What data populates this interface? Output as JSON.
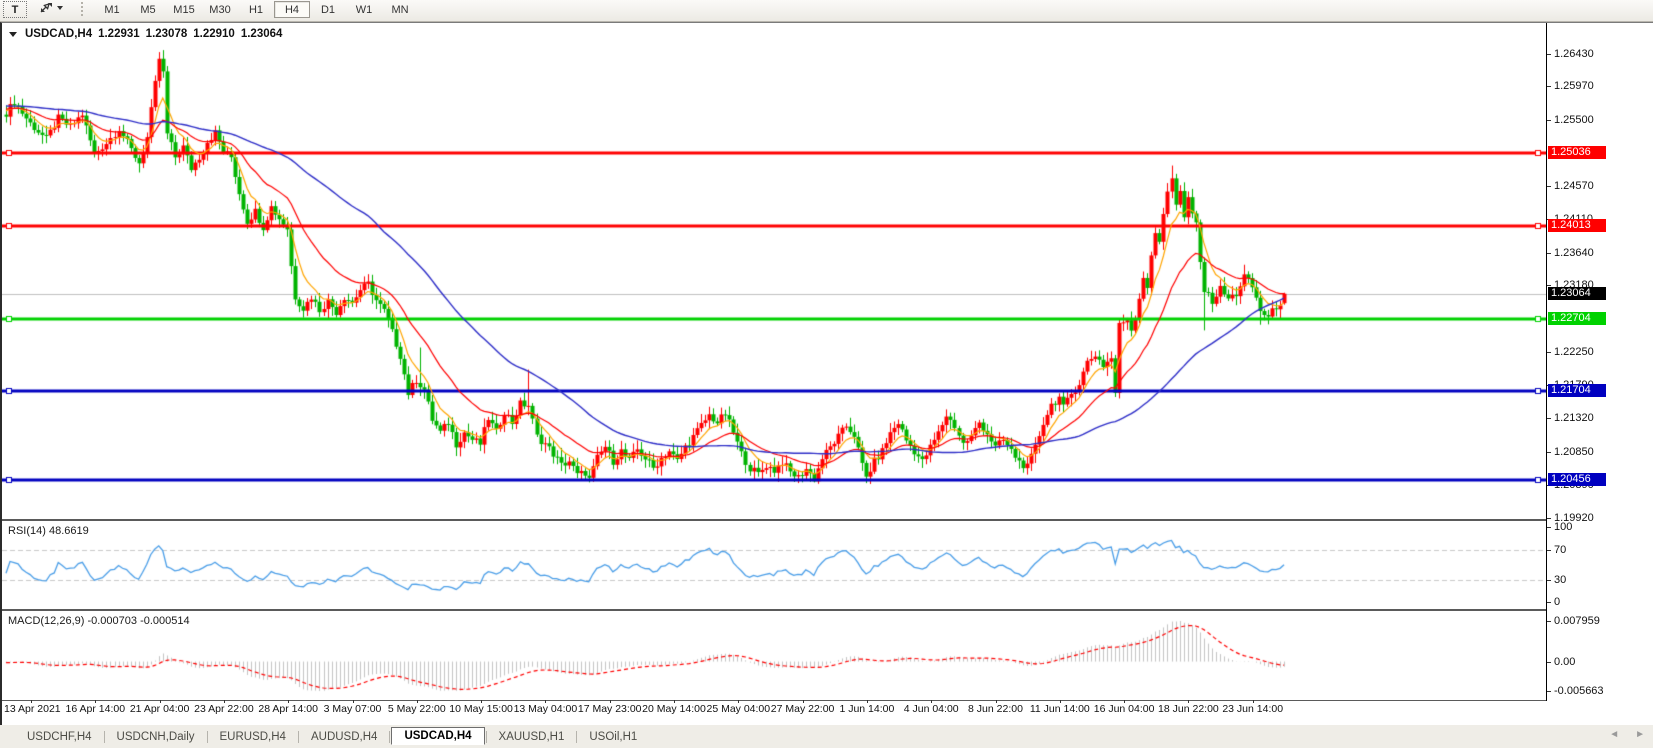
{
  "toolbar": {
    "text_tool_label": "T",
    "periods": [
      "M1",
      "M5",
      "M15",
      "M30",
      "H1",
      "H4",
      "D1",
      "W1",
      "MN"
    ],
    "active_period": "H4"
  },
  "chart_data": {
    "type": "candlestick",
    "symbol": "USDCAD",
    "timeframe": "H4",
    "header": {
      "symbol_display": "USDCAD,H4",
      "open": "1.22931",
      "high": "1.23078",
      "low": "1.22910",
      "close": "1.23064"
    },
    "current_price": {
      "label": "1.23064",
      "value": 1.23064
    },
    "hlines": [
      {
        "label": "1.25036",
        "value": 1.25036,
        "color": "#ff0000"
      },
      {
        "label": "1.24013",
        "value": 1.24013,
        "color": "#ff0000"
      },
      {
        "label": "1.22704",
        "value": 1.22704,
        "color": "#00d200"
      },
      {
        "label": "1.21704",
        "value": 1.21704,
        "color": "#0000c0"
      },
      {
        "label": "1.20456",
        "value": 1.20456,
        "color": "#0000c0"
      }
    ],
    "price_ticks": [
      {
        "label": "1.26430",
        "value": 1.2643
      },
      {
        "label": "1.25970",
        "value": 1.2597
      },
      {
        "label": "1.25500",
        "value": 1.255
      },
      {
        "label": "1.24570",
        "value": 1.2457
      },
      {
        "label": "1.24110",
        "value": 1.2411
      },
      {
        "label": "1.23640",
        "value": 1.2364
      },
      {
        "label": "1.23180",
        "value": 1.2318
      },
      {
        "label": "1.22250",
        "value": 1.2225
      },
      {
        "label": "1.21790",
        "value": 1.2179
      },
      {
        "label": "1.21320",
        "value": 1.2132
      },
      {
        "label": "1.20850",
        "value": 1.2085
      },
      {
        "label": "1.20390",
        "value": 1.2039
      },
      {
        "label": "1.19920",
        "value": 1.1992
      }
    ],
    "time_labels": [
      "13 Apr 2021",
      "16 Apr 14:00",
      "21 Apr 04:00",
      "23 Apr 22:00",
      "28 Apr 14:00",
      "3 May 07:00",
      "5 May 22:00",
      "10 May 15:00",
      "13 May 04:00",
      "17 May 23:00",
      "20 May 14:00",
      "25 May 04:00",
      "27 May 22:00",
      "1 Jun 14:00",
      "4 Jun 04:00",
      "8 Jun 22:00",
      "11 Jun 14:00",
      "16 Jun 04:00",
      "18 Jun 22:00",
      "23 Jun 14:00"
    ],
    "series_keypoints": [
      [
        -64,
        1.26
      ],
      [
        -48,
        1.256
      ],
      [
        -32,
        1.2588
      ],
      [
        -16,
        1.2555
      ],
      [
        -6,
        1.2572
      ],
      [
        0,
        1.256
      ],
      [
        2,
        1.2575
      ],
      [
        6,
        1.2545
      ],
      [
        10,
        1.2523
      ],
      [
        13,
        1.2552
      ],
      [
        16,
        1.254
      ],
      [
        19,
        1.2558
      ],
      [
        22,
        1.2502
      ],
      [
        25,
        1.2518
      ],
      [
        28,
        1.2538
      ],
      [
        31,
        1.2508
      ],
      [
        33,
        1.249
      ],
      [
        35,
        1.2525
      ],
      [
        37,
        1.26
      ],
      [
        38,
        1.2636
      ],
      [
        39,
        1.2615
      ],
      [
        40,
        1.253
      ],
      [
        42,
        1.2498
      ],
      [
        44,
        1.2512
      ],
      [
        46,
        1.2482
      ],
      [
        48,
        1.2498
      ],
      [
        50,
        1.252
      ],
      [
        52,
        1.2532
      ],
      [
        54,
        1.2506
      ],
      [
        56,
        1.2498
      ],
      [
        58,
        1.2448
      ],
      [
        60,
        1.2408
      ],
      [
        62,
        1.2422
      ],
      [
        64,
        1.24
      ],
      [
        66,
        1.2428
      ],
      [
        68,
        1.2412
      ],
      [
        70,
        1.2398
      ],
      [
        71,
        1.2345
      ],
      [
        72,
        1.2302
      ],
      [
        74,
        1.2286
      ],
      [
        76,
        1.2302
      ],
      [
        78,
        1.2284
      ],
      [
        80,
        1.2296
      ],
      [
        82,
        1.2281
      ],
      [
        84,
        1.2302
      ],
      [
        86,
        1.2294
      ],
      [
        88,
        1.2312
      ],
      [
        90,
        1.232
      ],
      [
        92,
        1.2297
      ],
      [
        94,
        1.2282
      ],
      [
        96,
        1.2252
      ],
      [
        98,
        1.222
      ],
      [
        100,
        1.2167
      ],
      [
        102,
        1.2186
      ],
      [
        104,
        1.2172
      ],
      [
        106,
        1.213
      ],
      [
        108,
        1.2112
      ],
      [
        110,
        1.2126
      ],
      [
        112,
        1.2096
      ],
      [
        114,
        1.2112
      ],
      [
        116,
        1.2102
      ],
      [
        118,
        1.2096
      ],
      [
        120,
        1.2132
      ],
      [
        122,
        1.2112
      ],
      [
        124,
        1.2142
      ],
      [
        126,
        1.2126
      ],
      [
        128,
        1.2152
      ],
      [
        130,
        1.215
      ],
      [
        132,
        1.2106
      ],
      [
        134,
        1.2096
      ],
      [
        136,
        1.2082
      ],
      [
        138,
        1.2066
      ],
      [
        140,
        1.2072
      ],
      [
        142,
        1.2052
      ],
      [
        144,
        1.2056
      ],
      [
        145,
        1.2046
      ],
      [
        147,
        1.2076
      ],
      [
        149,
        1.2092
      ],
      [
        151,
        1.2072
      ],
      [
        153,
        1.2086
      ],
      [
        155,
        1.2072
      ],
      [
        157,
        1.2088
      ],
      [
        159,
        1.2076
      ],
      [
        161,
        1.2062
      ],
      [
        163,
        1.2076
      ],
      [
        165,
        1.2086
      ],
      [
        167,
        1.2072
      ],
      [
        169,
        1.2092
      ],
      [
        171,
        1.2106
      ],
      [
        173,
        1.2122
      ],
      [
        175,
        1.2136
      ],
      [
        177,
        1.2126
      ],
      [
        179,
        1.2138
      ],
      [
        181,
        1.2112
      ],
      [
        183,
        1.2082
      ],
      [
        185,
        1.2062
      ],
      [
        187,
        1.2054
      ],
      [
        189,
        1.2066
      ],
      [
        191,
        1.2059
      ],
      [
        193,
        1.2071
      ],
      [
        195,
        1.2056
      ],
      [
        197,
        1.2049
      ],
      [
        199,
        1.2061
      ],
      [
        201,
        1.2047
      ],
      [
        203,
        1.2076
      ],
      [
        205,
        1.2091
      ],
      [
        207,
        1.2106
      ],
      [
        209,
        1.2121
      ],
      [
        211,
        1.2109
      ],
      [
        213,
        1.2066
      ],
      [
        214,
        1.2049
      ],
      [
        216,
        1.2071
      ],
      [
        218,
        1.2086
      ],
      [
        220,
        1.2111
      ],
      [
        222,
        1.2126
      ],
      [
        224,
        1.2101
      ],
      [
        226,
        1.2086
      ],
      [
        228,
        1.2071
      ],
      [
        230,
        1.2091
      ],
      [
        232,
        1.2111
      ],
      [
        234,
        1.2136
      ],
      [
        236,
        1.2121
      ],
      [
        238,
        1.2096
      ],
      [
        240,
        1.2106
      ],
      [
        242,
        1.2126
      ],
      [
        244,
        1.2111
      ],
      [
        246,
        1.2091
      ],
      [
        248,
        1.2101
      ],
      [
        250,
        1.2086
      ],
      [
        252,
        1.2071
      ],
      [
        254,
        1.2063
      ],
      [
        256,
        1.2091
      ],
      [
        258,
        1.2126
      ],
      [
        260,
        1.2151
      ],
      [
        262,
        1.2161
      ],
      [
        263,
        1.2146
      ],
      [
        265,
        1.2166
      ],
      [
        267,
        1.2181
      ],
      [
        269,
        1.2211
      ],
      [
        271,
        1.2221
      ],
      [
        273,
        1.2206
      ],
      [
        275,
        1.2216
      ],
      [
        276,
        1.2168
      ],
      [
        277,
        1.2262
      ],
      [
        279,
        1.2272
      ],
      [
        280,
        1.2256
      ],
      [
        281,
        1.2276
      ],
      [
        282,
        1.2301
      ],
      [
        283,
        1.2331
      ],
      [
        284,
        1.2316
      ],
      [
        285,
        1.2356
      ],
      [
        286,
        1.2391
      ],
      [
        287,
        1.2381
      ],
      [
        288,
        1.2421
      ],
      [
        289,
        1.2451
      ],
      [
        290,
        1.2466
      ],
      [
        291,
        1.2431
      ],
      [
        292,
        1.2446
      ],
      [
        293,
        1.2411
      ],
      [
        294,
        1.2441
      ],
      [
        295,
        1.2421
      ],
      [
        296,
        1.2401
      ],
      [
        297,
        1.2356
      ],
      [
        298,
        1.2311
      ],
      [
        300,
        1.2296
      ],
      [
        302,
        1.2313
      ],
      [
        304,
        1.2299
      ],
      [
        306,
        1.2306
      ],
      [
        308,
        1.2331
      ],
      [
        310,
        1.2316
      ],
      [
        312,
        1.2283
      ],
      [
        314,
        1.2273
      ],
      [
        316,
        1.2289
      ],
      [
        317,
        1.2294
      ],
      [
        318,
        1.2306
      ]
    ],
    "wick_overrides": {
      "38": {
        "h": 1.2645
      },
      "103": {
        "h": 1.2231
      },
      "130": {
        "h": 1.22
      },
      "145": {
        "l": 1.2042
      },
      "201": {
        "l": 1.2042
      },
      "214": {
        "l": 1.2041
      },
      "290": {
        "h": 1.2486
      },
      "298": {
        "l": 1.2255
      },
      "308": {
        "h": 1.2347
      },
      "312": {
        "l": 1.2263
      },
      "318": {
        "o": 1.22931,
        "h": 1.23078,
        "l": 1.2291,
        "c": 1.23064
      }
    },
    "last_candle": {
      "open": 1.22931,
      "high": 1.23078,
      "low": 1.2291,
      "close": 1.23064
    },
    "colors": {
      "up": "#ff0000",
      "down": "#00b400",
      "ma_fast": "#ffa500",
      "ma_mid": "#ff0000",
      "ma_slow": "#2e2ec8",
      "current_line": "#c0c0c0",
      "current_label_bg": "#000000"
    },
    "ma_periods": {
      "fast": 7,
      "mid": 21,
      "slow": 55
    }
  },
  "rsi": {
    "label": "RSI(14) 48.6619",
    "value": 48.6619,
    "period": 14,
    "ticks": [
      "100",
      "70",
      "30",
      "0"
    ],
    "tick_values": [
      100,
      70,
      30,
      0
    ],
    "levels": [
      70,
      30
    ],
    "color": "#4a9ee8",
    "level_color": "#c9c9c9"
  },
  "macd": {
    "label": "MACD(12,26,9) -0.000703 -0.000514",
    "macd_value": -0.000703,
    "signal_value": -0.000514,
    "ticks": [
      "0.007959",
      "0.00",
      "-0.005663"
    ],
    "bar_color": "#c4c4c4",
    "signal_color": "#ff0000"
  },
  "tabs": {
    "items": [
      "USDCHF,H4",
      "USDCNH,Daily",
      "EURUSD,H4",
      "AUDUSD,H4",
      "USDCAD,H4",
      "XAUUSD,H1",
      "USOil,H1"
    ],
    "active": "USDCAD,H4",
    "scroll_left_icon": "◄",
    "scroll_right_icon": "►"
  }
}
